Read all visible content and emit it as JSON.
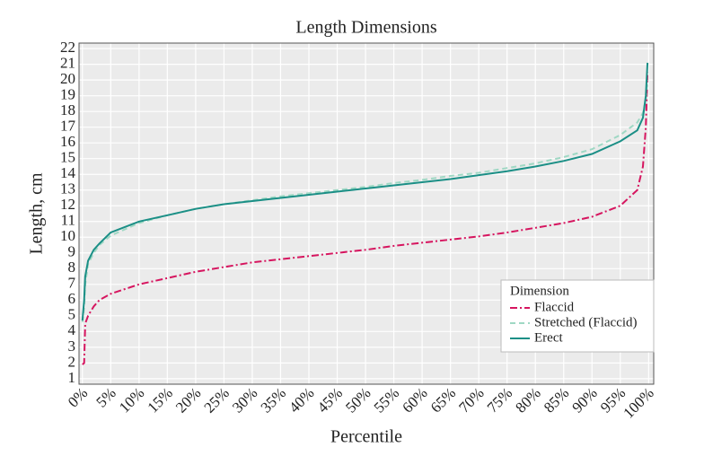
{
  "chart_data": {
    "type": "line",
    "title": "Length Dimensions",
    "x_label": "Percentile",
    "y_label": "Length, cm",
    "x": [
      0,
      0.3,
      0.5,
      1,
      2,
      3,
      5,
      10,
      15,
      20,
      25,
      30,
      35,
      40,
      45,
      50,
      55,
      60,
      65,
      70,
      75,
      80,
      85,
      90,
      95,
      98,
      99,
      99.5,
      99.8
    ],
    "series": [
      {
        "name": "Flaccid",
        "color": "#d6155f",
        "dash": "dashdot",
        "values": [
          1.9,
          2.0,
          4.5,
          5.0,
          5.6,
          6.0,
          6.4,
          7.0,
          7.4,
          7.8,
          8.1,
          8.4,
          8.6,
          8.8,
          9.0,
          9.2,
          9.45,
          9.65,
          9.85,
          10.05,
          10.3,
          10.6,
          10.9,
          11.3,
          12.0,
          13.0,
          14.5,
          17.0,
          20.5
        ]
      },
      {
        "name": "Stretched (Flaccid)",
        "color": "#9fd8c4",
        "dash": "dashed",
        "values": [
          4.6,
          5.5,
          7.0,
          8.3,
          9.0,
          9.5,
          10.1,
          10.9,
          11.4,
          11.8,
          12.1,
          12.35,
          12.6,
          12.8,
          13.0,
          13.2,
          13.45,
          13.65,
          13.9,
          14.1,
          14.4,
          14.7,
          15.1,
          15.6,
          16.5,
          17.3,
          17.9,
          18.8,
          20.0
        ]
      },
      {
        "name": "Erect",
        "color": "#1b8f86",
        "dash": "solid",
        "values": [
          4.7,
          6.0,
          7.5,
          8.5,
          9.2,
          9.6,
          10.3,
          11.0,
          11.4,
          11.8,
          12.1,
          12.3,
          12.5,
          12.7,
          12.9,
          13.1,
          13.3,
          13.5,
          13.7,
          13.95,
          14.2,
          14.5,
          14.85,
          15.3,
          16.1,
          16.8,
          17.6,
          19.0,
          21.1
        ]
      }
    ],
    "xlim": [
      -0.6,
      100.9
    ],
    "ylim": [
      0.65,
      22.35
    ],
    "xticks": [
      {
        "value": 0,
        "label": "0%"
      },
      {
        "value": 5,
        "label": "5%"
      },
      {
        "value": 10,
        "label": "10%"
      },
      {
        "value": 15,
        "label": "15%"
      },
      {
        "value": 20,
        "label": "20%"
      },
      {
        "value": 25,
        "label": "25%"
      },
      {
        "value": 30,
        "label": "30%"
      },
      {
        "value": 35,
        "label": "35%"
      },
      {
        "value": 40,
        "label": "40%"
      },
      {
        "value": 45,
        "label": "45%"
      },
      {
        "value": 50,
        "label": "50%"
      },
      {
        "value": 55,
        "label": "55%"
      },
      {
        "value": 60,
        "label": "60%"
      },
      {
        "value": 65,
        "label": "65%"
      },
      {
        "value": 70,
        "label": "70%"
      },
      {
        "value": 75,
        "label": "75%"
      },
      {
        "value": 80,
        "label": "80%"
      },
      {
        "value": 85,
        "label": "85%"
      },
      {
        "value": 90,
        "label": "90%"
      },
      {
        "value": 95,
        "label": "95%"
      },
      {
        "value": 100,
        "label": "100%"
      }
    ],
    "yticks": [
      1,
      2,
      3,
      4,
      5,
      6,
      7,
      8,
      9,
      10,
      11,
      12,
      13,
      14,
      15,
      16,
      17,
      18,
      19,
      20,
      21,
      22
    ],
    "grid": true,
    "legend_title": "Dimension",
    "legend_position": "lower right"
  }
}
